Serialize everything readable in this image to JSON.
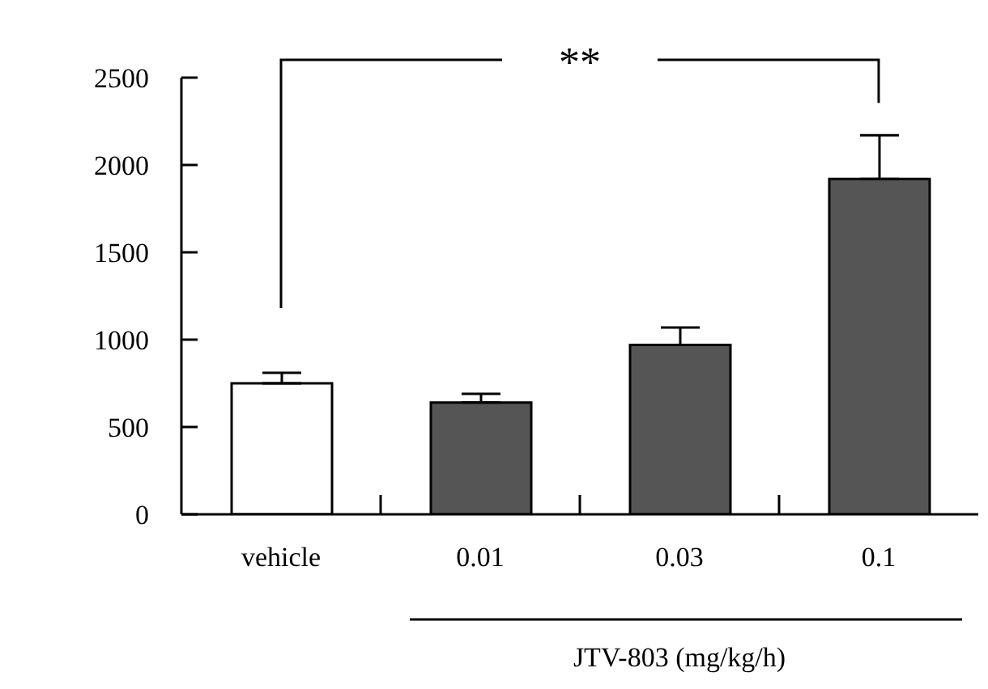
{
  "chart_data": {
    "type": "bar",
    "xlabel": "JTV-803 (mg/kg/h)",
    "categories": [
      "vehicle",
      "0.01",
      "0.03",
      "0.1"
    ],
    "values": [
      750,
      640,
      970,
      1920
    ],
    "errors": [
      [
        750,
        810
      ],
      [
        640,
        690
      ],
      [
        970,
        1070
      ],
      [
        1920,
        2170
      ]
    ],
    "colors": [
      "#ffffff",
      "#555555",
      "#555555",
      "#555555"
    ],
    "ylim": [
      0,
      2500
    ],
    "yticks": [
      0,
      500,
      1000,
      1500,
      2000,
      2500
    ],
    "annotations": [
      "**"
    ]
  }
}
